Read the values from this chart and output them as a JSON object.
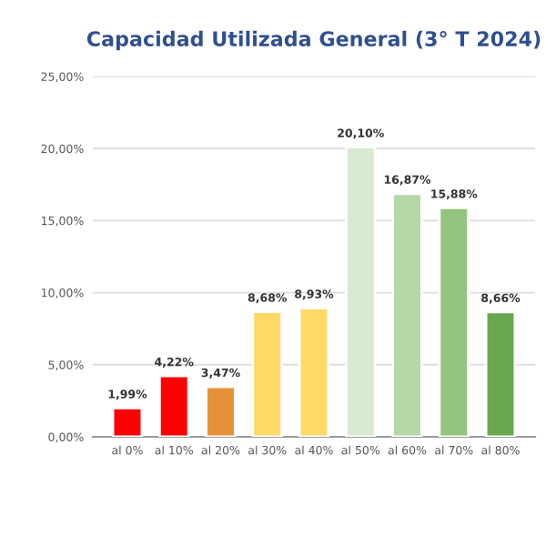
{
  "chart_data": {
    "type": "bar",
    "title": "Capacidad Utilizada General (3° T 2024)",
    "categories": [
      "al 0%",
      "al 10%",
      "al 20%",
      "al 30%",
      "al 40%",
      "al 50%",
      "al 60%",
      "al 70%",
      "al 80%"
    ],
    "values": [
      1.99,
      4.22,
      3.47,
      8.68,
      8.93,
      20.1,
      16.87,
      15.88,
      8.66
    ],
    "value_labels": [
      "1,99%",
      "4,22%",
      "3,47%",
      "8,68%",
      "8,93%",
      "20,10%",
      "16,87%",
      "15,88%",
      "8,66%"
    ],
    "colors": [
      "#ff0000",
      "#ff0000",
      "#e69138",
      "#ffd966",
      "#ffd966",
      "#d9ead3",
      "#b6d7a8",
      "#93c47d",
      "#6aa84f"
    ],
    "ylim": [
      0,
      25
    ],
    "yticks": [
      {
        "value": 0,
        "label": "0,00%"
      },
      {
        "value": 5,
        "label": "5,00%"
      },
      {
        "value": 10,
        "label": "10,00%"
      },
      {
        "value": 15,
        "label": "15,00%"
      },
      {
        "value": 20,
        "label": "20,00%"
      },
      {
        "value": 25,
        "label": "25,00%"
      }
    ],
    "grid": "y"
  }
}
